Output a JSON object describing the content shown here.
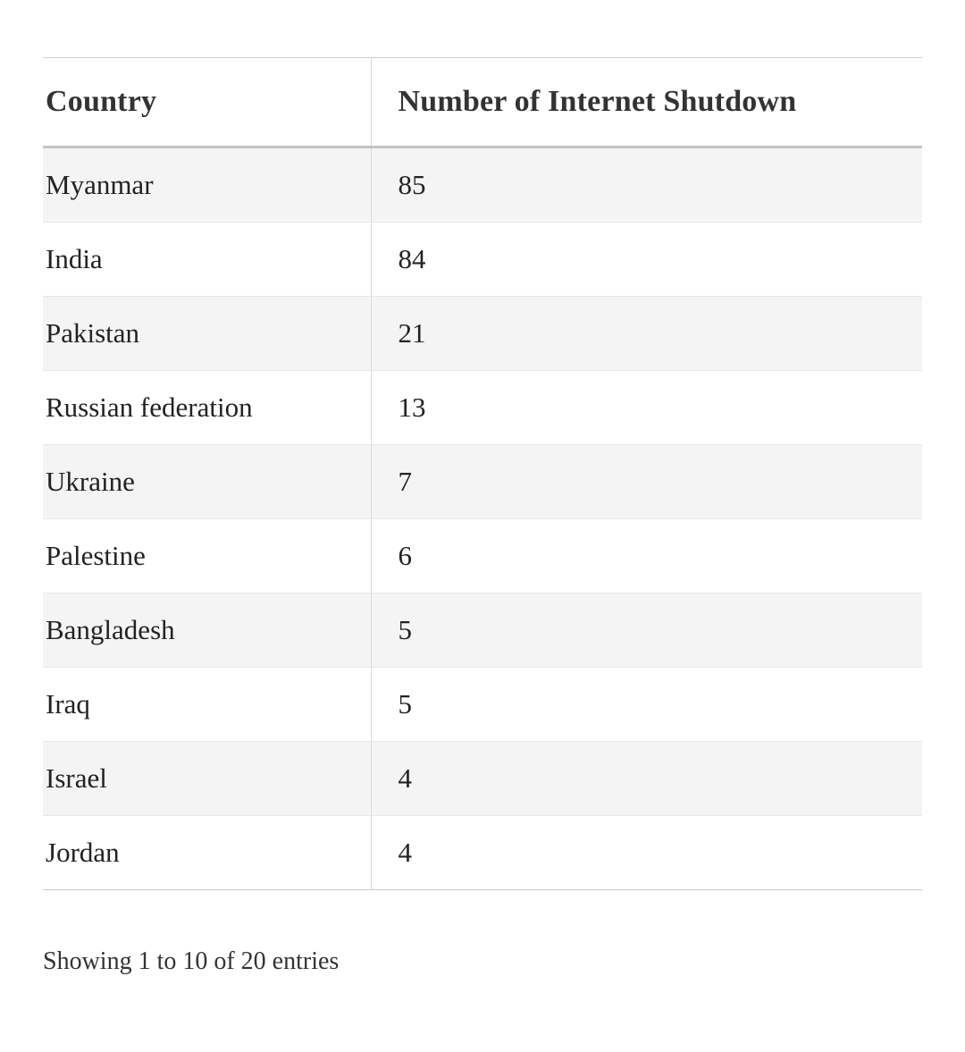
{
  "colors": {
    "stripe": "#f4f4f4",
    "border": "#cccccc",
    "text": "#222222"
  },
  "chart_data": {
    "type": "table",
    "columns": [
      "Country",
      "Number of Internet Shutdown"
    ],
    "rows": [
      [
        "Myanmar",
        85
      ],
      [
        "India",
        84
      ],
      [
        "Pakistan",
        21
      ],
      [
        "Russian federation",
        13
      ],
      [
        "Ukraine",
        7
      ],
      [
        "Palestine",
        6
      ],
      [
        "Bangladesh",
        5
      ],
      [
        "Iraq",
        5
      ],
      [
        "Israel",
        4
      ],
      [
        "Jordan",
        4
      ]
    ],
    "pagination": "Showing 1 to 10 of 20 entries"
  }
}
